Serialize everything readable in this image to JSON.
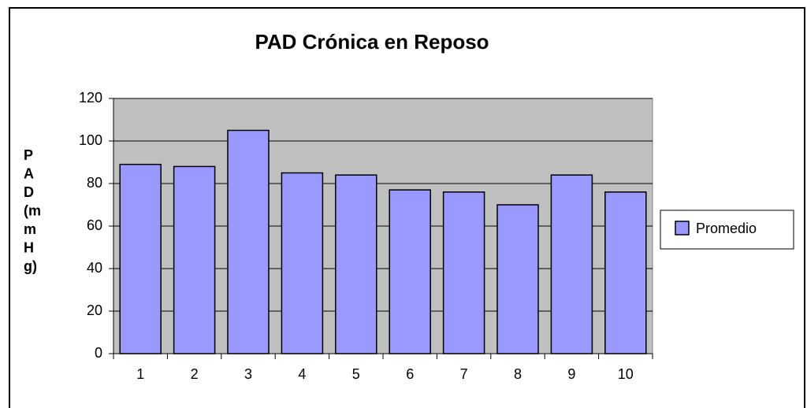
{
  "chart_data": {
    "type": "bar",
    "title": "PAD Crónica en Reposo",
    "y_label_lines": [
      "P",
      "A",
      "D",
      "(m",
      "m",
      "H",
      "g)"
    ],
    "categories": [
      "1",
      "2",
      "3",
      "4",
      "5",
      "6",
      "7",
      "8",
      "9",
      "10"
    ],
    "series": [
      {
        "name": "Promedio",
        "color": "#9999ff",
        "values": [
          89,
          88,
          105,
          85,
          84,
          77,
          76,
          70,
          84,
          76
        ]
      }
    ],
    "ylim": [
      0,
      120
    ],
    "yticks": [
      0,
      20,
      40,
      60,
      80,
      100,
      120
    ],
    "grid": true,
    "legend": "right"
  }
}
